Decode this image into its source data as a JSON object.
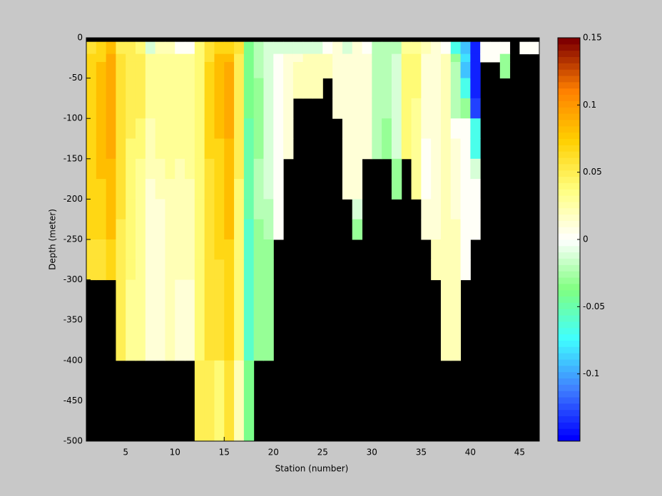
{
  "chart_data": {
    "type": "heatmap",
    "xlabel": "Station (number)",
    "ylabel": "Depth (meter)",
    "xlim": [
      1,
      47
    ],
    "ylim": [
      -500,
      0
    ],
    "xticks": [
      5,
      10,
      15,
      20,
      25,
      30,
      35,
      40,
      45
    ],
    "yticks": [
      0,
      -50,
      -100,
      -150,
      -200,
      -250,
      -300,
      -350,
      -400,
      -450,
      -500
    ],
    "x_edges": [
      1,
      2,
      3,
      4,
      5,
      6,
      7,
      8,
      9,
      10,
      11,
      12,
      13,
      14,
      15,
      16,
      17,
      18,
      19,
      20,
      21,
      22,
      23,
      24,
      25,
      26,
      27,
      28,
      29,
      30,
      31,
      32,
      33,
      34,
      35,
      36,
      37,
      38,
      39,
      40,
      41,
      42,
      43,
      44,
      45,
      46,
      47
    ],
    "y_edges": [
      0,
      -5,
      -20,
      -30,
      -50,
      -75,
      -100,
      -125,
      -150,
      -175,
      -200,
      -225,
      -250,
      -275,
      -300,
      -400,
      -500
    ],
    "missing_color": "#000000",
    "clim": [
      -0.15,
      0.15
    ],
    "cticks": [
      0.15,
      0.1,
      0.05,
      0,
      -0.05,
      -0.1
    ],
    "colormap": [
      "#0000ff",
      "#4080ff",
      "#40ffff",
      "#80ff80",
      "#ffffff",
      "#ffff80",
      "#ffd000",
      "#ff8000",
      "#800000"
    ],
    "z": [
      [
        null,
        0.06,
        0.07,
        0.07,
        0.07,
        0.07,
        0.07,
        0.07,
        0.07,
        0.07,
        0.07,
        0.07,
        0.06,
        0.06,
        null,
        null
      ],
      [
        null,
        0.07,
        0.07,
        0.08,
        0.08,
        0.08,
        0.08,
        0.08,
        0.08,
        0.07,
        0.07,
        0.07,
        0.06,
        0.06,
        null,
        null
      ],
      [
        null,
        0.08,
        0.09,
        0.09,
        0.09,
        0.09,
        0.09,
        0.09,
        0.08,
        0.08,
        0.08,
        0.08,
        0.07,
        0.07,
        null,
        null
      ],
      [
        null,
        0.05,
        0.06,
        0.06,
        0.06,
        0.06,
        0.06,
        0.06,
        0.06,
        0.06,
        0.06,
        0.05,
        0.05,
        0.05,
        0.05,
        null
      ],
      [
        null,
        0.05,
        0.05,
        0.05,
        0.05,
        0.05,
        0.05,
        0.04,
        0.04,
        0.04,
        0.04,
        0.04,
        0.04,
        0.04,
        0.03,
        null
      ],
      [
        null,
        0.04,
        0.05,
        0.05,
        0.05,
        0.05,
        0.04,
        0.04,
        0.03,
        0.03,
        0.03,
        0.03,
        0.03,
        0.03,
        0.03,
        null
      ],
      [
        null,
        -0.01,
        0.03,
        0.03,
        0.03,
        0.03,
        0.02,
        0.02,
        0.02,
        0.01,
        0.01,
        0.01,
        0.01,
        0.01,
        0.01,
        null
      ],
      [
        null,
        0.02,
        0.03,
        0.03,
        0.03,
        0.03,
        0.03,
        0.03,
        0.02,
        0.02,
        0.01,
        0.01,
        0.01,
        0.01,
        0.01,
        null
      ],
      [
        null,
        0.02,
        0.03,
        0.03,
        0.03,
        0.03,
        0.03,
        0.03,
        0.03,
        0.02,
        0.02,
        0.02,
        0.02,
        0.02,
        0.02,
        null
      ],
      [
        null,
        0,
        0.03,
        0.03,
        0.03,
        0.03,
        0.03,
        0.03,
        0.02,
        0.02,
        0.02,
        0.02,
        0.02,
        0.02,
        0.01,
        null
      ],
      [
        null,
        0,
        0.03,
        0.03,
        0.03,
        0.03,
        0.03,
        0.03,
        0.03,
        0.02,
        0.02,
        0.02,
        0.02,
        0.02,
        0.01,
        null
      ],
      [
        null,
        0.04,
        0.04,
        0.04,
        0.04,
        0.04,
        0.04,
        0.04,
        0.04,
        0.04,
        0.04,
        0.04,
        0.04,
        0.04,
        0.04,
        0.05
      ],
      [
        null,
        0.06,
        0.06,
        0.07,
        0.07,
        0.07,
        0.07,
        0.07,
        0.06,
        0.06,
        0.06,
        0.06,
        0.06,
        0.06,
        0.06,
        0.05
      ],
      [
        null,
        0.07,
        0.08,
        0.08,
        0.08,
        0.08,
        0.08,
        0.07,
        0.07,
        0.07,
        0.07,
        0.07,
        0.07,
        0.06,
        0.06,
        0.04
      ],
      [
        null,
        0.07,
        0.08,
        0.09,
        0.09,
        0.09,
        0.09,
        0.08,
        0.08,
        0.08,
        0.08,
        0.08,
        0.07,
        0.07,
        0.07,
        0.06
      ],
      [
        null,
        0.06,
        0.05,
        0.05,
        0.05,
        0.05,
        0.05,
        0.05,
        0.05,
        0.04,
        0.04,
        0.04,
        0.04,
        0.04,
        0.04,
        0.02
      ],
      [
        null,
        -0.04,
        -0.04,
        -0.04,
        -0.04,
        -0.04,
        -0.05,
        -0.05,
        -0.05,
        -0.05,
        -0.05,
        -0.06,
        -0.06,
        -0.06,
        -0.06,
        -0.04
      ],
      [
        null,
        -0.02,
        -0.02,
        -0.02,
        -0.03,
        -0.03,
        -0.03,
        -0.03,
        -0.02,
        -0.02,
        -0.02,
        -0.03,
        -0.03,
        -0.03,
        -0.03,
        null
      ],
      [
        null,
        -0.01,
        -0.01,
        -0.01,
        -0.01,
        -0.01,
        -0.01,
        -0.01,
        -0.01,
        -0.01,
        -0.02,
        -0.02,
        -0.03,
        -0.03,
        -0.03,
        null
      ],
      [
        null,
        -0.01,
        0,
        0,
        0,
        0,
        0,
        0,
        0,
        0,
        0,
        0,
        null,
        null,
        null,
        null
      ],
      [
        null,
        -0.01,
        0.01,
        0.01,
        0.01,
        0.01,
        0.01,
        0.01,
        null,
        null,
        null,
        null,
        null,
        null,
        null,
        null
      ],
      [
        null,
        -0.01,
        0.01,
        0.02,
        0.02,
        null,
        null,
        null,
        null,
        null,
        null,
        null,
        null,
        null,
        null,
        null
      ],
      [
        null,
        -0.01,
        0.02,
        0.02,
        0.02,
        null,
        null,
        null,
        null,
        null,
        null,
        null,
        null,
        null,
        null,
        null
      ],
      [
        null,
        -0.01,
        0.02,
        0.02,
        0.02,
        null,
        null,
        null,
        null,
        null,
        null,
        null,
        null,
        null,
        null,
        null
      ],
      [
        null,
        0,
        0.02,
        0.02,
        null,
        null,
        null,
        null,
        null,
        null,
        null,
        null,
        null,
        null,
        null,
        null
      ],
      [
        null,
        0.01,
        0.01,
        0.01,
        0.01,
        0.01,
        null,
        null,
        null,
        null,
        null,
        null,
        null,
        null,
        null,
        null
      ],
      [
        null,
        -0.01,
        0.01,
        0.01,
        0.01,
        0.01,
        0.01,
        0.01,
        0.01,
        0.01,
        null,
        null,
        null,
        null,
        null,
        null
      ],
      [
        null,
        0.01,
        0.01,
        0.01,
        0.01,
        0.01,
        0.01,
        0.01,
        0.01,
        0.01,
        -0.01,
        -0.03,
        null,
        null,
        null,
        null
      ],
      [
        null,
        0,
        0.01,
        0.01,
        0.01,
        0.01,
        0.01,
        0.01,
        null,
        null,
        null,
        null,
        null,
        null,
        null,
        null
      ],
      [
        null,
        -0.02,
        -0.02,
        -0.02,
        -0.02,
        -0.02,
        -0.02,
        -0.02,
        null,
        null,
        null,
        null,
        null,
        null,
        null,
        null
      ],
      [
        null,
        -0.02,
        -0.02,
        -0.02,
        -0.02,
        -0.02,
        -0.03,
        -0.03,
        null,
        null,
        null,
        null,
        null,
        null,
        null,
        null
      ],
      [
        null,
        -0.02,
        -0.01,
        -0.01,
        -0.01,
        -0.01,
        -0.01,
        -0.01,
        -0.03,
        -0.03,
        null,
        null,
        null,
        null,
        null,
        null
      ],
      [
        null,
        0.03,
        0.04,
        0.04,
        0.04,
        0.04,
        0.04,
        0.04,
        null,
        null,
        null,
        null,
        null,
        null,
        null,
        null
      ],
      [
        null,
        0.03,
        0.04,
        0.04,
        0.04,
        0.03,
        0.03,
        0.03,
        0.03,
        0.03,
        null,
        null,
        null,
        null,
        null,
        null
      ],
      [
        null,
        0.02,
        0.01,
        0.01,
        0.01,
        0.01,
        0.01,
        0,
        0,
        0,
        0.01,
        0.01,
        null,
        null,
        null,
        null
      ],
      [
        null,
        0.01,
        0.01,
        0.01,
        0.01,
        0.01,
        0.01,
        0.01,
        0.01,
        0.01,
        0.01,
        0.01,
        0.02,
        0.02,
        null,
        null
      ],
      [
        null,
        0,
        0.02,
        0.02,
        0.02,
        0.02,
        0.02,
        0.02,
        0.02,
        0.02,
        0.02,
        0.02,
        0.02,
        0.02,
        0.02,
        null
      ],
      [
        null,
        -0.07,
        -0.03,
        -0.02,
        -0.02,
        -0.02,
        0,
        0.01,
        0.01,
        0.01,
        0.01,
        0.02,
        0.02,
        0.02,
        0.02,
        null
      ],
      [
        null,
        -0.09,
        -0.08,
        -0.09,
        -0.07,
        -0.03,
        0,
        0,
        0,
        0,
        0,
        0,
        0,
        0,
        null,
        null
      ],
      [
        null,
        -0.14,
        -0.14,
        -0.14,
        -0.14,
        -0.13,
        -0.07,
        -0.07,
        -0.01,
        0,
        0,
        0,
        null,
        null,
        null,
        null
      ],
      [
        null,
        0,
        0,
        null,
        null,
        null,
        null,
        null,
        null,
        null,
        null,
        null,
        null,
        null,
        null,
        null
      ],
      [
        null,
        0,
        0,
        null,
        null,
        null,
        null,
        null,
        null,
        null,
        null,
        null,
        null,
        null,
        null,
        null
      ],
      [
        null,
        0,
        -0.03,
        -0.03,
        null,
        null,
        null,
        null,
        null,
        null,
        null,
        null,
        null,
        null,
        null,
        null
      ],
      [
        null,
        null,
        null,
        null,
        null,
        null,
        null,
        null,
        null,
        null,
        null,
        null,
        null,
        null,
        null,
        null
      ],
      [
        null,
        0,
        null,
        null,
        null,
        null,
        null,
        null,
        null,
        null,
        null,
        null,
        null,
        null,
        null,
        null
      ],
      [
        null,
        0,
        null,
        null,
        null,
        null,
        null,
        null,
        null,
        null,
        null,
        null,
        null,
        null,
        null,
        null
      ]
    ]
  }
}
